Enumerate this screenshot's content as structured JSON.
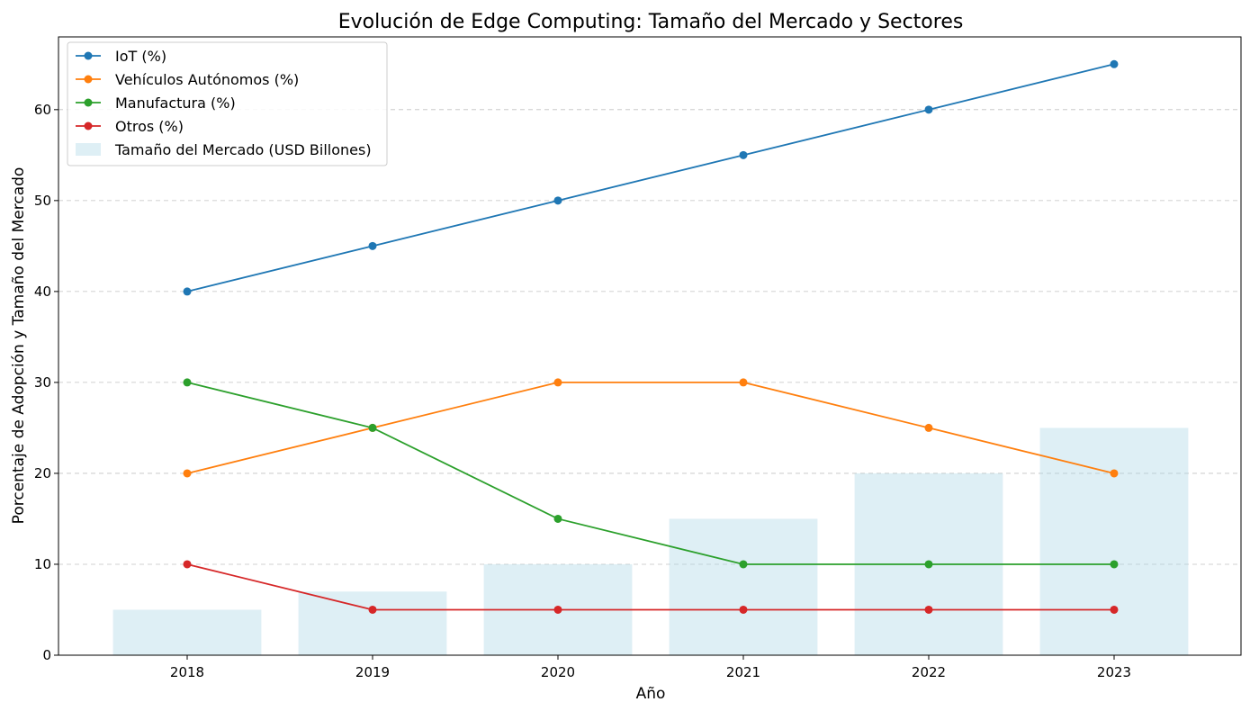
{
  "chart_data": {
    "type": "line",
    "title": "Evolución de Edge Computing: Tamaño del Mercado y Sectores",
    "xlabel": "Año",
    "ylabel": "Porcentaje de Adopción y Tamaño del Mercado",
    "categories": [
      "2018",
      "2019",
      "2020",
      "2021",
      "2022",
      "2023"
    ],
    "ylim": [
      0,
      68
    ],
    "yticks": [
      0,
      10,
      20,
      30,
      40,
      50,
      60
    ],
    "grid": "horizontal-dashed",
    "legend_position": "top-left",
    "bars": {
      "name": "Tamaño del Mercado (USD Billones)",
      "color": "#add8e6",
      "values": [
        5,
        7,
        10,
        15,
        20,
        25
      ]
    },
    "series": [
      {
        "name": "IoT (%)",
        "color": "#1f77b4",
        "values": [
          40,
          45,
          50,
          55,
          60,
          65
        ]
      },
      {
        "name": "Vehículos Autónomos (%)",
        "color": "#ff7f0e",
        "values": [
          20,
          25,
          30,
          30,
          25,
          20
        ]
      },
      {
        "name": "Manufactura (%)",
        "color": "#2ca02c",
        "values": [
          30,
          25,
          15,
          10,
          10,
          10
        ]
      },
      {
        "name": "Otros (%)",
        "color": "#d62728",
        "values": [
          10,
          5,
          5,
          5,
          5,
          5
        ]
      }
    ]
  }
}
